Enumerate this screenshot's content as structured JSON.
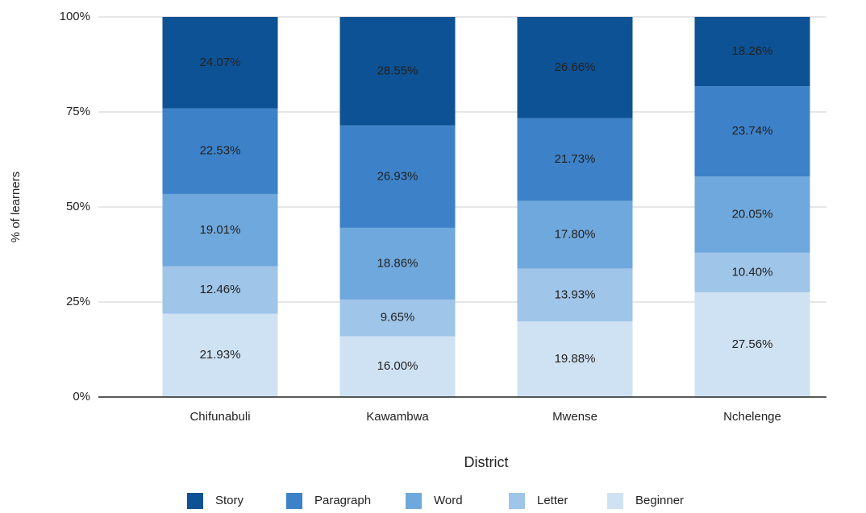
{
  "chart_data": {
    "type": "stacked_bar",
    "x_label": "District",
    "y_label": "% of learners",
    "categories": [
      "Chifunabuli",
      "Kawambwa",
      "Mwense",
      "Nchelenge"
    ],
    "series": [
      {
        "name": "Story",
        "color": "#0d5294",
        "values": [
          24.07,
          28.55,
          26.66,
          18.26
        ],
        "value_labels": [
          "24.07%",
          "28.55%",
          "26.66%",
          "18.26%"
        ]
      },
      {
        "name": "Paragraph",
        "color": "#3d82c8",
        "values": [
          22.53,
          26.93,
          21.73,
          23.74
        ],
        "value_labels": [
          "22.53%",
          "26.93%",
          "21.73%",
          "23.74%"
        ]
      },
      {
        "name": "Word",
        "color": "#6fa8dc",
        "values": [
          19.01,
          18.86,
          17.8,
          20.05
        ],
        "value_labels": [
          "19.01%",
          "18.86%",
          "17.80%",
          "20.05%"
        ]
      },
      {
        "name": "Letter",
        "color": "#9fc5e8",
        "values": [
          12.46,
          9.65,
          13.93,
          10.4
        ],
        "value_labels": [
          "12.46%",
          "9.65%",
          "13.93%",
          "10.40%"
        ]
      },
      {
        "name": "Beginner",
        "color": "#cfe2f3",
        "values": [
          21.93,
          16.0,
          19.88,
          27.56
        ],
        "value_labels": [
          "21.93%",
          "16.00%",
          "19.88%",
          "27.56%"
        ]
      }
    ],
    "ylim": [
      0,
      100
    ],
    "yticks": [
      {
        "value": 0,
        "label": "0%"
      },
      {
        "value": 25,
        "label": "25%"
      },
      {
        "value": 50,
        "label": "50%"
      },
      {
        "value": 75,
        "label": "75%"
      },
      {
        "value": 100,
        "label": "100%"
      }
    ],
    "grid": true,
    "legend": "bottom"
  }
}
